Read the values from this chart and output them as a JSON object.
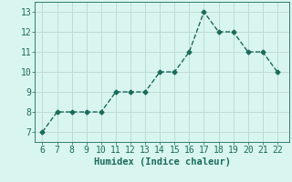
{
  "x": [
    6,
    7,
    8,
    9,
    10,
    11,
    12,
    13,
    14,
    15,
    16,
    17,
    18,
    19,
    20,
    21,
    22
  ],
  "y": [
    7,
    8,
    8,
    8,
    8,
    9,
    9,
    9,
    10,
    10,
    11,
    13,
    12,
    12,
    11,
    11,
    10
  ],
  "line_color": "#1a6b5a",
  "marker": "D",
  "marker_size": 2.5,
  "bg_color": "#d9f5f0",
  "grid_color": "#c0dbd6",
  "xlabel": "Humidex (Indice chaleur)",
  "xlabel_fontsize": 7.5,
  "tick_fontsize": 7,
  "xlim": [
    5.5,
    22.8
  ],
  "ylim": [
    6.5,
    13.5
  ],
  "xticks": [
    6,
    7,
    8,
    9,
    10,
    11,
    12,
    13,
    14,
    15,
    16,
    17,
    18,
    19,
    20,
    21,
    22
  ],
  "yticks": [
    7,
    8,
    9,
    10,
    11,
    12,
    13
  ],
  "line_width": 1.0
}
